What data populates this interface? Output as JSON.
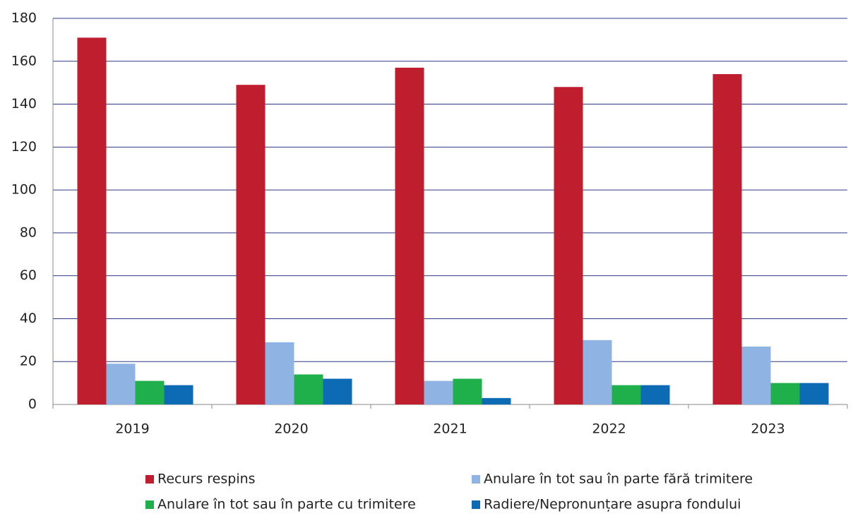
{
  "chart_data": {
    "type": "bar",
    "categories": [
      "2019",
      "2020",
      "2021",
      "2022",
      "2023"
    ],
    "series": [
      {
        "name": "Recurs respins",
        "color": "#be1e2d",
        "values": [
          171,
          149,
          157,
          148,
          154
        ]
      },
      {
        "name": "Anulare în tot sau în parte fără trimitere",
        "color": "#8fb4e3",
        "values": [
          19,
          29,
          11,
          30,
          27
        ]
      },
      {
        "name": "Anulare în tot sau în parte cu trimitere",
        "color": "#1fb04c",
        "values": [
          11,
          14,
          12,
          9,
          10
        ]
      },
      {
        "name": "Radiere/Nepronunțare asupra fondului",
        "color": "#0d6ab5",
        "values": [
          9,
          12,
          3,
          9,
          10
        ]
      }
    ],
    "ylim": [
      0,
      180
    ],
    "yticks": [
      0,
      20,
      40,
      60,
      80,
      100,
      120,
      140,
      160,
      180
    ],
    "grid": true,
    "legend": "bottom"
  }
}
